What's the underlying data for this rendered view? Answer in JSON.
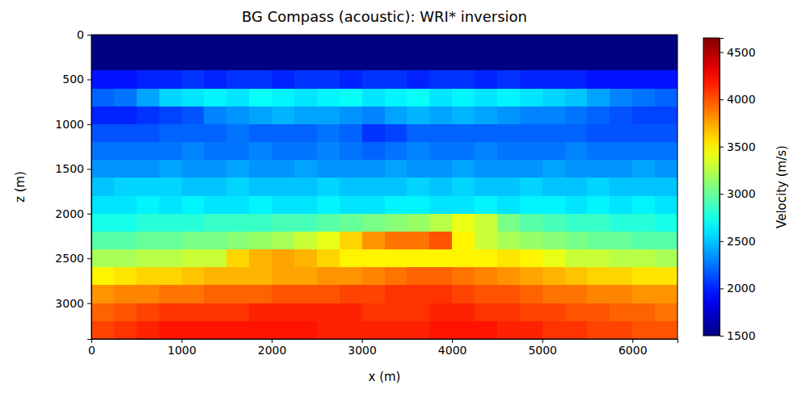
{
  "chart_data": {
    "type": "heatmap",
    "title": "BG Compass (acoustic): WRI* inversion",
    "xlabel": "x (m)",
    "ylabel": "z (m)",
    "xlim": [
      0,
      6500
    ],
    "ylim": [
      0,
      3400
    ],
    "xticks": [
      0,
      1000,
      2000,
      3000,
      4000,
      5000,
      6000
    ],
    "yticks": [
      0,
      500,
      1000,
      1500,
      2000,
      2500,
      3000
    ],
    "x": [
      125,
      375,
      625,
      875,
      1125,
      1375,
      1625,
      1875,
      2125,
      2375,
      2625,
      2875,
      3125,
      3375,
      3625,
      3875,
      4125,
      4375,
      4625,
      4875,
      5125,
      5375,
      5625,
      5875,
      6125,
      6375
    ],
    "y": [
      100,
      300,
      500,
      700,
      900,
      1100,
      1300,
      1500,
      1700,
      1900,
      2100,
      2300,
      2500,
      2700,
      2900,
      3100,
      3300
    ],
    "z": [
      [
        1500,
        1500,
        1500,
        1500,
        1500,
        1500,
        1500,
        1500,
        1500,
        1500,
        1500,
        1500,
        1500,
        1500,
        1500,
        1500,
        1500,
        1500,
        1500,
        1500,
        1500,
        1500,
        1500,
        1500,
        1500,
        1500
      ],
      [
        1510,
        1510,
        1510,
        1510,
        1510,
        1510,
        1510,
        1510,
        1510,
        1510,
        1510,
        1510,
        1510,
        1510,
        1510,
        1510,
        1510,
        1510,
        1510,
        1510,
        1510,
        1510,
        1510,
        1510,
        1510,
        1510
      ],
      [
        1950,
        1950,
        2000,
        2000,
        2050,
        2000,
        2050,
        2050,
        2000,
        2050,
        2050,
        2000,
        2050,
        2050,
        2000,
        2050,
        2050,
        2000,
        2050,
        2000,
        2000,
        2000,
        1950,
        1950,
        1950,
        1950
      ],
      [
        2200,
        2250,
        2400,
        2550,
        2600,
        2650,
        2600,
        2700,
        2650,
        2600,
        2650,
        2700,
        2600,
        2650,
        2700,
        2600,
        2650,
        2600,
        2650,
        2600,
        2550,
        2500,
        2400,
        2300,
        2250,
        2200
      ],
      [
        2000,
        2000,
        2050,
        2100,
        2150,
        2300,
        2350,
        2400,
        2450,
        2400,
        2400,
        2350,
        2300,
        2400,
        2450,
        2400,
        2450,
        2400,
        2350,
        2300,
        2300,
        2250,
        2200,
        2150,
        2100,
        2100
      ],
      [
        2150,
        2150,
        2150,
        2200,
        2200,
        2200,
        2250,
        2200,
        2200,
        2200,
        2250,
        2200,
        2050,
        2100,
        2200,
        2200,
        2200,
        2200,
        2200,
        2200,
        2200,
        2200,
        2150,
        2150,
        2150,
        2150
      ],
      [
        2250,
        2250,
        2250,
        2250,
        2300,
        2250,
        2250,
        2300,
        2250,
        2250,
        2300,
        2250,
        2200,
        2250,
        2300,
        2250,
        2250,
        2300,
        2250,
        2250,
        2250,
        2300,
        2250,
        2250,
        2250,
        2250
      ],
      [
        2350,
        2350,
        2350,
        2400,
        2350,
        2350,
        2400,
        2350,
        2350,
        2400,
        2350,
        2350,
        2350,
        2400,
        2350,
        2350,
        2400,
        2350,
        2350,
        2350,
        2400,
        2350,
        2350,
        2350,
        2400,
        2350
      ],
      [
        2500,
        2550,
        2550,
        2550,
        2500,
        2500,
        2550,
        2500,
        2500,
        2500,
        2550,
        2500,
        2500,
        2500,
        2550,
        2500,
        2550,
        2500,
        2500,
        2550,
        2500,
        2500,
        2550,
        2500,
        2500,
        2500
      ],
      [
        2600,
        2600,
        2650,
        2600,
        2650,
        2600,
        2600,
        2650,
        2600,
        2600,
        2650,
        2600,
        2600,
        2650,
        2650,
        2600,
        2600,
        2650,
        2600,
        2650,
        2650,
        2600,
        2650,
        2600,
        2650,
        2600
      ],
      [
        2750,
        2750,
        2800,
        2800,
        2800,
        2850,
        2850,
        2850,
        2900,
        2900,
        2950,
        3000,
        3050,
        3100,
        3150,
        3250,
        3400,
        3300,
        3050,
        2950,
        2900,
        2850,
        2850,
        2800,
        2800,
        2750
      ],
      [
        2950,
        2950,
        3000,
        3000,
        3050,
        3050,
        3100,
        3150,
        3200,
        3300,
        3400,
        3600,
        3800,
        3900,
        3900,
        4000,
        3500,
        3300,
        3200,
        3150,
        3100,
        3050,
        3000,
        3000,
        2950,
        2950
      ],
      [
        3200,
        3200,
        3250,
        3250,
        3300,
        3300,
        3600,
        3700,
        3750,
        3700,
        3600,
        3500,
        3500,
        3500,
        3500,
        3500,
        3500,
        3500,
        3550,
        3500,
        3400,
        3300,
        3300,
        3250,
        3250,
        3200
      ],
      [
        3500,
        3550,
        3600,
        3600,
        3650,
        3700,
        3700,
        3700,
        3750,
        3750,
        3800,
        3800,
        3850,
        3900,
        3950,
        3950,
        3900,
        3850,
        3800,
        3750,
        3700,
        3650,
        3600,
        3600,
        3550,
        3550
      ],
      [
        3800,
        3850,
        3850,
        3900,
        3900,
        3950,
        3950,
        3950,
        4000,
        4000,
        4000,
        4050,
        4050,
        4100,
        4100,
        4100,
        4050,
        4000,
        4000,
        3950,
        3900,
        3900,
        3850,
        3850,
        3800,
        3800
      ],
      [
        3950,
        4000,
        4050,
        4100,
        4100,
        4100,
        4100,
        4150,
        4150,
        4150,
        4150,
        4150,
        4100,
        4100,
        4100,
        4150,
        4150,
        4100,
        4100,
        4050,
        4050,
        4000,
        4000,
        3950,
        3950,
        3900
      ],
      [
        4050,
        4100,
        4150,
        4200,
        4200,
        4200,
        4200,
        4200,
        4200,
        4200,
        4150,
        4150,
        4150,
        4150,
        4150,
        4200,
        4200,
        4200,
        4150,
        4150,
        4100,
        4100,
        4050,
        4050,
        4000,
        4000
      ]
    ],
    "colorbar": {
      "label": "Velocity (m/s)",
      "range": [
        1500,
        4650
      ],
      "ticks": [
        1500,
        2000,
        2500,
        3000,
        3500,
        4000,
        4500
      ]
    }
  }
}
